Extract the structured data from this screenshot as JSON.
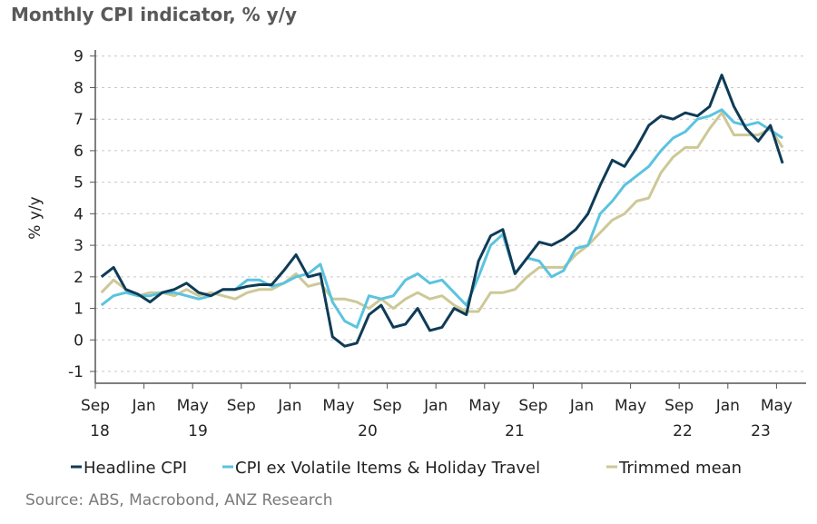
{
  "title": "Monthly CPI indicator, % y/y",
  "source": "Source: ABS, Macrobond, ANZ Research",
  "chart_data": {
    "type": "line",
    "title": "Monthly CPI indicator, % y/y",
    "ylabel": "% y/y",
    "xlabel": "",
    "ylim": [
      -1,
      9
    ],
    "yticks": [
      -1,
      0,
      1,
      2,
      3,
      4,
      5,
      6,
      7,
      8,
      9
    ],
    "grid": "horizontal dashed",
    "legend": "bottom",
    "x_start": "2018-09",
    "x_end": "2023-05",
    "x_frequency": "monthly",
    "x_tick_labels": [
      "Sep",
      "Jan",
      "May",
      "Sep",
      "Jan",
      "May",
      "Sep",
      "Jan",
      "May",
      "Sep",
      "Jan",
      "May",
      "Sep",
      "Jan",
      "May"
    ],
    "x_year_labels": [
      "18",
      "19",
      "20",
      "21",
      "22",
      "23"
    ],
    "series": [
      {
        "name": "Headline CPI",
        "color": "#0f3b56",
        "values": [
          2.0,
          2.3,
          1.6,
          1.45,
          1.2,
          1.5,
          1.6,
          1.8,
          1.5,
          1.4,
          1.6,
          1.6,
          1.7,
          1.75,
          1.75,
          2.2,
          2.7,
          2.0,
          2.1,
          0.1,
          -0.2,
          -0.1,
          0.8,
          1.1,
          0.4,
          0.5,
          1.0,
          0.3,
          0.4,
          1.0,
          0.8,
          2.5,
          3.3,
          3.5,
          2.1,
          2.6,
          3.1,
          3.0,
          3.2,
          3.5,
          4.0,
          4.9,
          5.7,
          5.5,
          6.1,
          6.8,
          7.1,
          7.0,
          7.2,
          7.1,
          7.4,
          8.4,
          7.4,
          6.7,
          6.3,
          6.8,
          5.6
        ]
      },
      {
        "name": "CPI ex Volatile Items & Holiday Travel",
        "color": "#5bc3df",
        "values": [
          1.1,
          1.4,
          1.5,
          1.4,
          1.4,
          1.5,
          1.5,
          1.4,
          1.3,
          1.4,
          1.6,
          1.6,
          1.9,
          1.9,
          1.7,
          1.8,
          2.0,
          2.1,
          2.4,
          1.2,
          0.6,
          0.4,
          1.4,
          1.3,
          1.4,
          1.9,
          2.1,
          1.8,
          1.9,
          1.5,
          1.1,
          2.0,
          3.0,
          3.35,
          2.1,
          2.6,
          2.5,
          2.0,
          2.2,
          2.9,
          3.0,
          4.0,
          4.4,
          4.9,
          5.2,
          5.5,
          6.0,
          6.4,
          6.6,
          7.0,
          7.1,
          7.3,
          6.9,
          6.8,
          6.9,
          6.65,
          6.4
        ]
      },
      {
        "name": "Trimmed mean",
        "color": "#cdc897",
        "values": [
          1.5,
          1.9,
          1.6,
          1.4,
          1.5,
          1.5,
          1.4,
          1.6,
          1.4,
          1.5,
          1.4,
          1.3,
          1.5,
          1.6,
          1.6,
          1.8,
          2.1,
          1.7,
          1.8,
          1.3,
          1.3,
          1.2,
          1.0,
          1.3,
          1.0,
          1.3,
          1.5,
          1.3,
          1.4,
          1.1,
          0.9,
          0.9,
          1.5,
          1.5,
          1.6,
          2.0,
          2.3,
          2.3,
          2.3,
          2.7,
          3.0,
          3.4,
          3.8,
          4.0,
          4.4,
          4.5,
          5.3,
          5.8,
          6.1,
          6.1,
          6.7,
          7.2,
          6.5,
          6.5,
          6.5,
          6.7,
          6.1
        ]
      }
    ]
  }
}
